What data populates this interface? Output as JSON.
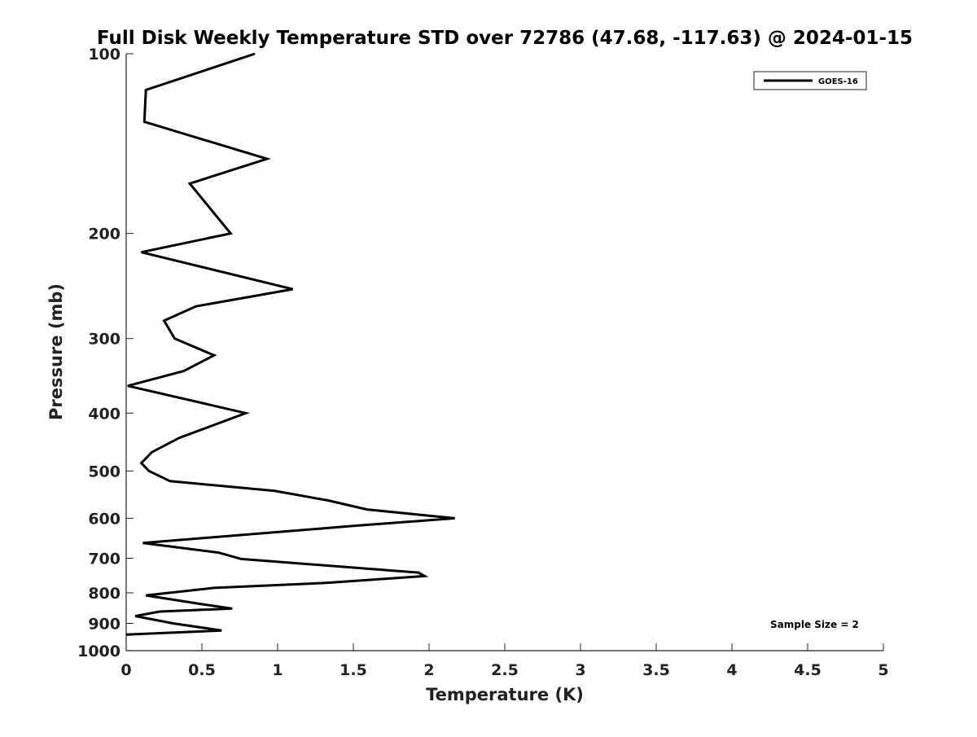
{
  "chart_data": {
    "type": "line",
    "title": "Full Disk Weekly Temperature STD over 72786 (47.68, -117.63) @ 2024-01-15",
    "xlabel": "Temperature (K)",
    "ylabel": "Pressure (mb)",
    "xlim": [
      0,
      5
    ],
    "ylim": [
      100,
      1000
    ],
    "y_scale": "log",
    "y_reversed": true,
    "x_ticks": [
      "0",
      "0.5",
      "1",
      "1.5",
      "2",
      "2.5",
      "3",
      "3.5",
      "4",
      "4.5",
      "5"
    ],
    "y_ticks": [
      "100",
      "200",
      "300",
      "400",
      "500",
      "600",
      "700",
      "800",
      "900",
      "1000"
    ],
    "grid": false,
    "legend_position": "top-right",
    "annotation": "Sample Size = 2",
    "series": [
      {
        "name": "GOES-16",
        "color": "#000000",
        "points": [
          [
            0.85,
            100
          ],
          [
            0.13,
            115
          ],
          [
            0.12,
            130
          ],
          [
            0.93,
            150
          ],
          [
            0.42,
            165
          ],
          [
            0.69,
            200
          ],
          [
            0.1,
            215
          ],
          [
            1.1,
            248
          ],
          [
            0.46,
            265
          ],
          [
            0.25,
            280
          ],
          [
            0.32,
            300
          ],
          [
            0.58,
            320
          ],
          [
            0.38,
            340
          ],
          [
            0.01,
            360
          ],
          [
            0.79,
            400
          ],
          [
            0.35,
            440
          ],
          [
            0.17,
            465
          ],
          [
            0.1,
            485
          ],
          [
            0.15,
            500
          ],
          [
            0.29,
            520
          ],
          [
            0.98,
            540
          ],
          [
            1.33,
            560
          ],
          [
            1.59,
            580
          ],
          [
            2.17,
            600
          ],
          [
            1.5,
            618
          ],
          [
            0.11,
            660
          ],
          [
            0.61,
            685
          ],
          [
            0.76,
            702
          ],
          [
            1.93,
            740
          ],
          [
            1.97,
            750
          ],
          [
            1.32,
            770
          ],
          [
            0.58,
            785
          ],
          [
            0.13,
            808
          ],
          [
            0.49,
            835
          ],
          [
            0.7,
            850
          ],
          [
            0.22,
            860
          ],
          [
            0.06,
            875
          ],
          [
            0.31,
            900
          ],
          [
            0.63,
            925
          ],
          [
            0.0,
            940
          ]
        ]
      }
    ]
  }
}
